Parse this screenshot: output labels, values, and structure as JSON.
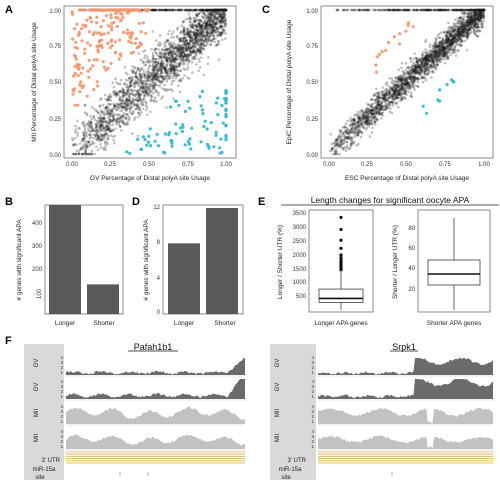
{
  "figure": {
    "panels": {
      "A": "A",
      "B": "B",
      "C": "C",
      "D": "D",
      "E": "E",
      "F": "F"
    }
  },
  "colors": {
    "black_points": "#1a1a1a",
    "longer_points": "#f4956b",
    "shorter_points": "#2bb5cf",
    "bar": "#595959",
    "gv_track": "#6b6b6b",
    "mii_track": "#c2c2c2",
    "utr": "#e8c276"
  },
  "chart_data": [
    {
      "id": "A",
      "type": "scatter",
      "xlabel": "GV Percentage of Distal polyA site Usage",
      "ylabel": "MII Percentage of Distal polyA site Usage",
      "xlim": [
        0,
        1
      ],
      "ylim": [
        0,
        1
      ],
      "xticks": [
        "0.00",
        "0.25",
        "0.50",
        "0.75",
        "1.00"
      ],
      "yticks": [
        "0.00",
        "0.25",
        "0.50",
        "0.75",
        "1.00"
      ],
      "groups": [
        {
          "color_key": "black_points",
          "count": 2600,
          "pattern": "diagonal band"
        },
        {
          "color_key": "longer_points",
          "count": 230,
          "pattern": "upper left"
        },
        {
          "color_key": "shorter_points",
          "count": 95,
          "pattern": "lower right"
        }
      ]
    },
    {
      "id": "C",
      "type": "scatter",
      "xlabel": "ESC Percentage of Distal polyA site Usage",
      "ylabel": "EpiC Percentage of Distal polyA site Usage",
      "xlim": [
        0,
        1
      ],
      "ylim": [
        0,
        1
      ],
      "xticks": [
        "0.00",
        "0.25",
        "0.50",
        "0.75",
        "1.00"
      ],
      "yticks": [
        "0.00",
        "0.25",
        "0.50",
        "0.75",
        "1.00"
      ],
      "groups": [
        {
          "color_key": "black_points",
          "count": 2600,
          "pattern": "tight diagonal"
        },
        {
          "color_key": "longer_points",
          "count": 14,
          "pattern": "upper left"
        },
        {
          "color_key": "shorter_points",
          "count": 9,
          "pattern": "lower right"
        }
      ]
    },
    {
      "id": "B",
      "type": "bar",
      "ylabel": "# genes with significant APA",
      "categories": [
        "Longer",
        "Shorter"
      ],
      "values": [
        460,
        125
      ],
      "ylim": [
        0,
        460
      ],
      "yticks": [
        100,
        200,
        300,
        400
      ]
    },
    {
      "id": "D",
      "type": "bar",
      "ylabel": "# genes with significant APA",
      "categories": [
        "Longer",
        "Shorter"
      ],
      "values": [
        8,
        12
      ],
      "ylim": [
        0,
        12
      ],
      "yticks": [
        0,
        4,
        8,
        12
      ]
    },
    {
      "id": "E",
      "type": "boxplot",
      "title": "Length changes for significant oocyte APA",
      "plots": [
        {
          "ylabel": "Longer / Shorter UTR (%)",
          "xlabel": "Longer APA genes",
          "ylim": [
            0,
            3800
          ],
          "yticks": [
            500,
            1000,
            1500,
            2000,
            2500,
            3000,
            3500
          ],
          "box": {
            "min": 0,
            "q1": 280,
            "median": 430,
            "q3": 780,
            "max": 1450
          },
          "outliers": [
            1500,
            1550,
            1600,
            1650,
            1700,
            1760,
            1800,
            1870,
            1950,
            2050,
            2300,
            2600,
            3000,
            3450
          ]
        },
        {
          "ylabel": "Shorter / Longer UTR (%)",
          "xlabel": "Shorter APA genes",
          "ylim": [
            0,
            100
          ],
          "yticks": [
            20,
            40,
            60,
            80
          ],
          "box": {
            "min": 0,
            "q1": 25,
            "median": 36,
            "q3": 50,
            "max": 92
          },
          "outliers": []
        }
      ]
    }
  ],
  "tracks": {
    "genes": [
      "Pafah1b1",
      "Srpk1"
    ],
    "labels": [
      "GV",
      "GV",
      "MII",
      "MII"
    ],
    "utr_label": "3' UTR",
    "mir_label": [
      "miR-15a",
      "site"
    ],
    "left_ticks": [
      "4",
      "3",
      "2",
      "1"
    ]
  }
}
